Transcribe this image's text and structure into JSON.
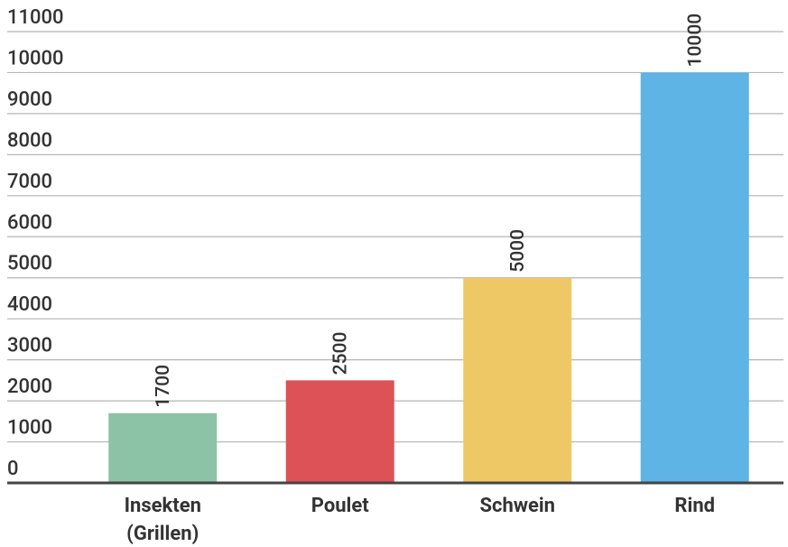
{
  "chart_data": {
    "type": "bar",
    "categories": [
      "Insekten (Grillen)",
      "Poulet",
      "Schwein",
      "Rind"
    ],
    "values": [
      1700,
      2500,
      5000,
      10000
    ],
    "colors": [
      "#8cc2a5",
      "#dc5256",
      "#efc866",
      "#5db4e5"
    ],
    "ylim": [
      0,
      11000
    ],
    "yticks": [
      0,
      1000,
      2000,
      3000,
      4000,
      5000,
      6000,
      7000,
      8000,
      9000,
      10000,
      11000
    ],
    "grid": true
  }
}
